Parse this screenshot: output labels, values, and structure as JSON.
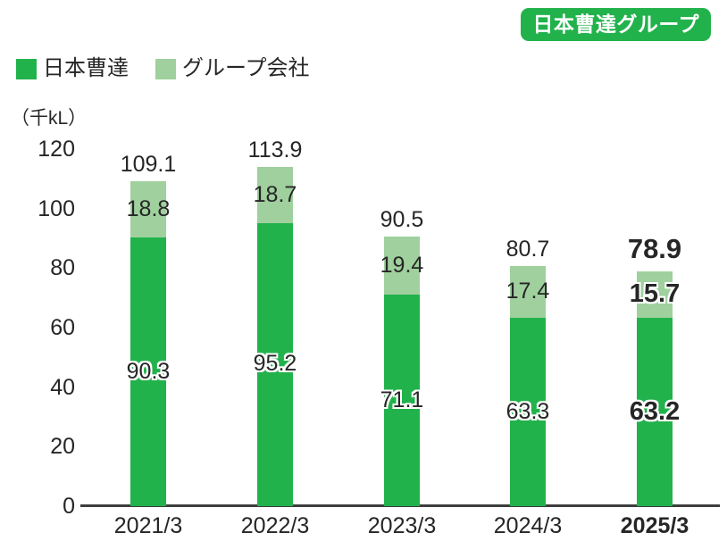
{
  "badge": {
    "label": "日本曹達グループ",
    "bg_color": "#22b24c",
    "text_color": "#ffffff"
  },
  "unit_label": "（千kL）",
  "legend": {
    "items": [
      {
        "label": "日本曹達",
        "color": "#22b24c"
      },
      {
        "label": "グループ会社",
        "color": "#9fd09d"
      }
    ]
  },
  "chart_data": {
    "type": "bar",
    "stacked": true,
    "title": "",
    "ylabel": "（千kL）",
    "xlabel": "",
    "ylim": [
      0,
      120
    ],
    "yticks": [
      0,
      20,
      40,
      60,
      80,
      100,
      120
    ],
    "grid": false,
    "legend_position": "top-left",
    "categories": [
      "2021/3",
      "2022/3",
      "2023/3",
      "2024/3",
      "2025/3"
    ],
    "series": [
      {
        "name": "日本曹達",
        "color": "#22b24c",
        "values": [
          90.3,
          95.2,
          71.1,
          63.3,
          63.2
        ]
      },
      {
        "name": "グループ会社",
        "color": "#9fd09d",
        "values": [
          18.8,
          18.7,
          19.4,
          17.4,
          15.7
        ]
      }
    ],
    "totals": [
      109.1,
      113.9,
      90.5,
      80.7,
      78.9
    ],
    "highlight_category": "2025/3",
    "axis_color": "#3d3d3d",
    "text_color": "#262626"
  }
}
